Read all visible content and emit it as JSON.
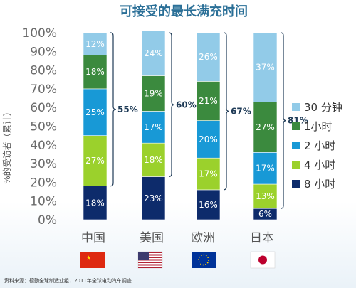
{
  "title": "可接受的最长满充时间",
  "source_note": "资料来源：德勤全球制造业组，2011年全球电动汽车调查",
  "chart_data": {
    "type": "bar",
    "stacked": true,
    "title": "可接受的最长满充时间",
    "ylabel": "%的受访者（累计）",
    "ylim": [
      0,
      100
    ],
    "yticks": [
      "0%",
      "10%",
      "20%",
      "30%",
      "40%",
      "50%",
      "60%",
      "70%",
      "80%",
      "90%",
      "100%"
    ],
    "categories": [
      "中国",
      "美国",
      "欧洲",
      "日本"
    ],
    "series": [
      {
        "name": "8 小时",
        "color": "#0d2b6b",
        "values": [
          18,
          23,
          16,
          6
        ]
      },
      {
        "name": "4 小时",
        "color": "#9bd12c",
        "values": [
          27,
          18,
          17,
          13
        ]
      },
      {
        "name": "2 小时",
        "color": "#1899d6",
        "values": [
          25,
          17,
          20,
          17
        ]
      },
      {
        "name": "1小时",
        "color": "#3b8a3e",
        "values": [
          18,
          19,
          21,
          27
        ]
      },
      {
        "name": "30 分钟",
        "color": "#92cbe8",
        "values": [
          12,
          24,
          26,
          37
        ]
      }
    ],
    "segment_labels": [
      [
        "18%",
        "27%",
        "25%",
        "18%",
        "12%"
      ],
      [
        "23%",
        "18%",
        "17%",
        "19%",
        "24%"
      ],
      [
        "16%",
        "17%",
        "20%",
        "21%",
        "26%"
      ],
      [
        "6%",
        "13%",
        "17%",
        "27%",
        "37%"
      ]
    ],
    "bracket_labels": [
      "55%",
      "60%",
      "67%",
      "81%"
    ],
    "legend_position": "right",
    "grid": false
  },
  "flags": [
    "china-flag",
    "us-flag",
    "eu-flag",
    "japan-flag"
  ]
}
